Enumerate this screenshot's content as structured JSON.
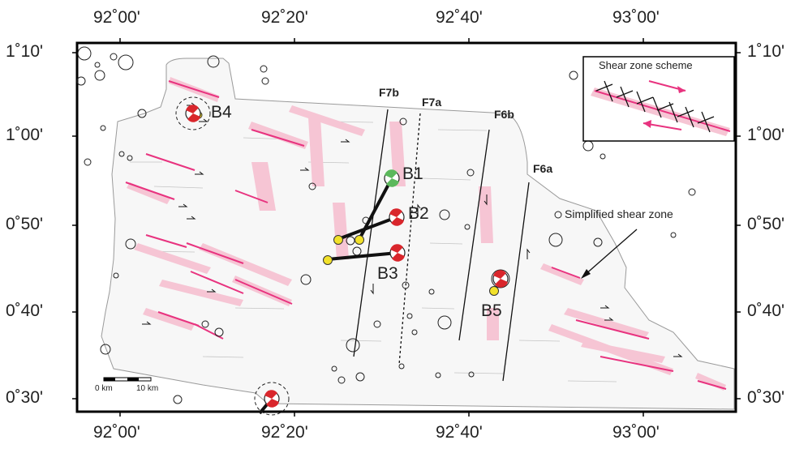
{
  "map": {
    "lon_ticks": [
      "92˚00'",
      "92˚20'",
      "92˚40'",
      "93˚00'"
    ],
    "lat_ticks": [
      "1˚10'",
      "1˚00'",
      "0˚50'",
      "0˚40'",
      "0˚30'"
    ],
    "faults": [
      "F7b",
      "F7a",
      "F6b",
      "F6a"
    ],
    "events": [
      "B1",
      "B2",
      "B3",
      "B4",
      "B5"
    ],
    "scale_bar": {
      "start": "0 km",
      "end": "10 km"
    },
    "inset_title": "Shear zone scheme",
    "callout": "Simplified shear zone",
    "colors": {
      "shear_line": "#e8337f",
      "shear_fill": "#f6c5d4",
      "focal_red": "#d9262c",
      "focal_green": "#5cb85c",
      "yellow": "#f2e12a"
    }
  }
}
